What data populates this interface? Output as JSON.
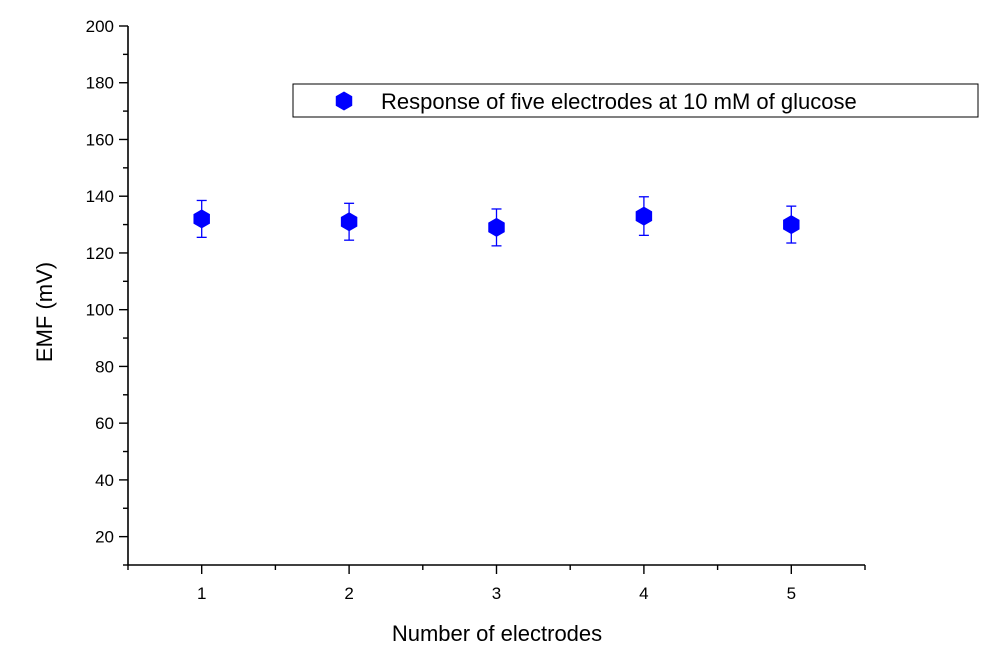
{
  "chart_data": {
    "type": "scatter",
    "title": "",
    "xlabel": "Number of electrodes",
    "ylabel": "EMF (mV)",
    "xlim": [
      0.5,
      5.5
    ],
    "ylim": [
      10,
      200
    ],
    "xticks": [
      1,
      2,
      3,
      4,
      5
    ],
    "xtick_labels": [
      "1",
      "2",
      "3",
      "4",
      "5"
    ],
    "yticks": [
      20,
      40,
      60,
      80,
      100,
      120,
      140,
      160,
      180,
      200
    ],
    "ytick_labels": [
      "20",
      "40",
      "60",
      "80",
      "100",
      "120",
      "140",
      "160",
      "180",
      "200"
    ],
    "grid": false,
    "legend_position": "top-right",
    "series": [
      {
        "name": "Response of five electrodes at 10 mM of glucose",
        "marker": "hexagon",
        "color": "#0000ff",
        "x": [
          1,
          2,
          3,
          4,
          5
        ],
        "y": [
          132,
          131,
          129,
          133,
          130
        ],
        "error": [
          6.5,
          6.5,
          6.5,
          6.8,
          6.5
        ]
      }
    ]
  }
}
